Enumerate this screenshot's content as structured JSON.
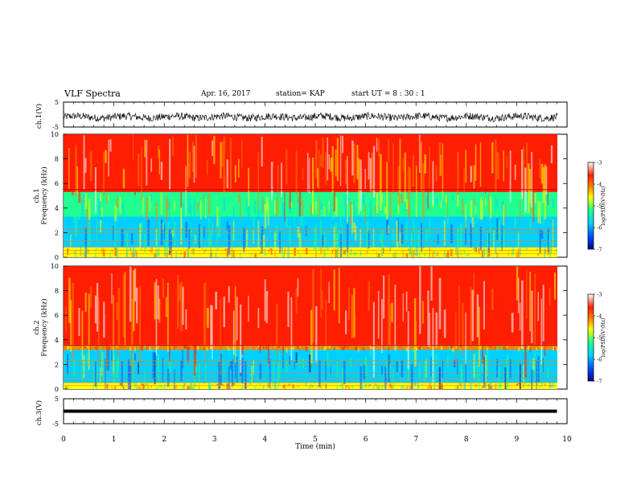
{
  "header": {
    "title": "VLF Spectra",
    "date": "Apr. 16, 2017",
    "station": "station= KAP",
    "start": "start  UT  =   8  : 30 : 1"
  },
  "chart_data": [
    {
      "type": "line",
      "panel": "ch1-waveform",
      "ylabel": "ch.1(V)",
      "ylim": [
        -5,
        5
      ],
      "yticks": [
        "5",
        "-5"
      ],
      "xlim": [
        0,
        10
      ],
      "description_value": "noisy waveform centered near -1 V with ~±1.5 V excursions"
    },
    {
      "type": "heatmap",
      "panel": "ch1-spectrogram",
      "ylabel": "ch.1\nFrequency (kHz)",
      "ylim": [
        0,
        10
      ],
      "yticks": [
        "0",
        "2",
        "4",
        "6",
        "8",
        "10"
      ],
      "xlim": [
        0,
        10
      ],
      "bands_khz": [
        {
          "from": 0.0,
          "to": 0.8,
          "level": -4.5
        },
        {
          "from": 0.8,
          "to": 3.3,
          "level": -5.6
        },
        {
          "from": 3.3,
          "to": 5.3,
          "level": -5.0
        },
        {
          "from": 5.3,
          "to": 10.0,
          "level": -3.8
        }
      ],
      "colorbar": {
        "label": "log(PSD)(V²/Hz)",
        "range": [
          -7,
          -3
        ],
        "ticks": [
          "-3",
          "-4",
          "-5",
          "-6",
          "-7"
        ]
      }
    },
    {
      "type": "heatmap",
      "panel": "ch2-spectrogram",
      "ylabel": "ch.2\nFrequency (kHz)",
      "ylim": [
        0,
        10
      ],
      "yticks": [
        "0",
        "2",
        "4",
        "6",
        "8",
        "10"
      ],
      "xlim": [
        0,
        10
      ],
      "bands_khz": [
        {
          "from": 0.0,
          "to": 0.5,
          "level": -4.5
        },
        {
          "from": 0.5,
          "to": 3.2,
          "level": -5.8
        },
        {
          "from": 3.2,
          "to": 3.6,
          "level": -4.2
        },
        {
          "from": 3.6,
          "to": 10.0,
          "level": -3.7
        }
      ],
      "colorbar": {
        "label": "log(PSD)(V²/Hz)",
        "range": [
          -7,
          -3
        ],
        "ticks": [
          "-3",
          "-4",
          "-5",
          "-6",
          "-7"
        ]
      }
    },
    {
      "type": "line",
      "panel": "ch3-waveform",
      "ylabel": "ch.3(V)",
      "ylim": [
        -5,
        5
      ],
      "yticks": [
        "5",
        "-5"
      ],
      "xlim": [
        0,
        10
      ],
      "xlabel": "Time  (min)",
      "xticks": [
        "0",
        "1",
        "2",
        "3",
        "4",
        "5",
        "6",
        "7",
        "8",
        "9",
        "10"
      ],
      "values": [
        {
          "x": 0,
          "y": 0
        },
        {
          "x": 9.8,
          "y": 0
        }
      ]
    }
  ],
  "colors": {
    "axis": "#000000",
    "waveform": "#111111",
    "colormap": [
      "#00008c",
      "#0050ff",
      "#00d0ff",
      "#20ff90",
      "#ffff00",
      "#ff8000",
      "#ff1e00",
      "#ffffff"
    ]
  }
}
